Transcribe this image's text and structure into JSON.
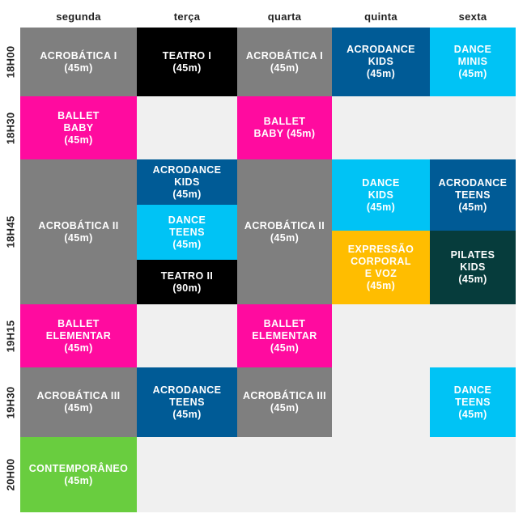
{
  "days": [
    "segunda",
    "terça",
    "quarta",
    "quinta",
    "sexta"
  ],
  "times": [
    "18H00",
    "18H30",
    "18H45",
    "19H15",
    "19H30",
    "20H00"
  ],
  "classes": {
    "acro1_seg": "ACROBÁTICA I\n(45m)",
    "teatro1_ter": "TEATRO I\n(45m)",
    "acro1_qua": "ACROBÁTICA I\n(45m)",
    "acrodance_kids_qui": "ACRODANCE\nKIDS\n(45m)",
    "dance_minis_sex": "DANCE\nMINIS\n(45m)",
    "ballet_baby_seg": "BALLET\nBABY\n(45m)",
    "ballet_baby_qua": "BALLET\nBABY (45m)",
    "acro2_seg": "ACROBÁTICA II\n(45m)",
    "acrodance_kids_ter": "ACRODANCE\nKIDS\n(45m)",
    "dance_teens_ter": "DANCE\nTEENS\n(45m)",
    "teatro2_ter": "TEATRO II\n(90m)",
    "acro2_qua": "ACROBÁTICA II\n(45m)",
    "dance_kids_qui": "DANCE\nKIDS\n(45m)",
    "expressao_qui": "EXPRESSÃO\nCORPORAL\nE VOZ\n(45m)",
    "acrodance_teens_sex": "ACRODANCE\nTEENS\n(45m)",
    "pilates_kids_sex": "PILATES\nKIDS\n(45m)",
    "ballet_elem_seg": "BALLET\nELEMENTAR\n(45m)",
    "ballet_elem_qua": "BALLET\nELEMENTAR\n(45m)",
    "acro3_seg": "ACROBÁTICA III\n(45m)",
    "acrodance_teens_ter": "ACRODANCE\nTEENS\n(45m)",
    "acro3_qua": "ACROBÁTICA III\n(45m)",
    "dance_teens_sex": "DANCE\nTEENS\n(45m)",
    "contemporaneo_seg": "CONTEMPORÂNEO\n(45m)"
  },
  "colors": {
    "acrobatica": "#7f7f7f",
    "teatro": "#000000",
    "acrodance": "#005b96",
    "dance": "#00c3f5",
    "ballet": "#ff0b9f",
    "expressao": "#ffbd00",
    "pilates": "#063c3c",
    "contemporaneo": "#69cd3f",
    "empty": "#f0f0f0"
  }
}
